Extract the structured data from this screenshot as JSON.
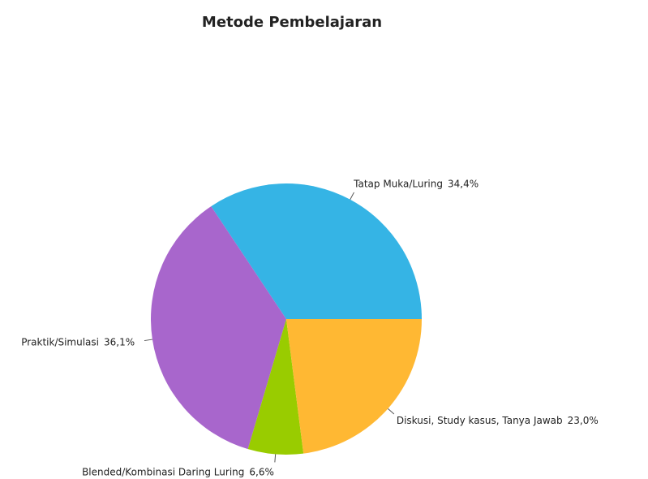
{
  "chart_data": {
    "type": "pie",
    "title": "Metode Pembelajaran",
    "categories": [
      "Tatap Muka/Luring",
      "Praktik/Simulasi",
      "Blended/Kombinasi Daring Luring",
      "Diskusi, Study kasus, Tanya Jawab"
    ],
    "values": [
      34.4,
      36.1,
      6.6,
      23.0
    ],
    "value_labels": [
      "34,4%",
      "36,1%",
      "6,6%",
      "23,0%"
    ],
    "colors": [
      "#35b4e5",
      "#a866cc",
      "#99cc00",
      "#ffb833"
    ]
  }
}
